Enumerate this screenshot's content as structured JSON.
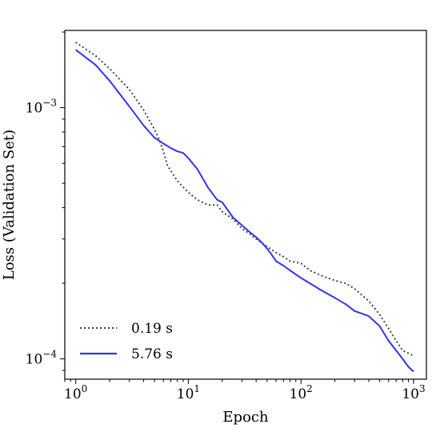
{
  "chart_data": {
    "type": "line",
    "xscale": "log",
    "yscale": "log",
    "xlabel": "Epoch",
    "ylabel": "Loss (Validation Set)",
    "xlim": [
      0.8,
      1300
    ],
    "ylim": [
      8.3e-05,
      0.00203
    ],
    "x_ticks": [
      {
        "value": 1,
        "base": "10",
        "exp": "0"
      },
      {
        "value": 10,
        "base": "10",
        "exp": "1"
      },
      {
        "value": 100,
        "base": "10",
        "exp": "2"
      },
      {
        "value": 1000,
        "base": "10",
        "exp": "3"
      }
    ],
    "y_ticks": [
      {
        "value": 0.001,
        "base": "10",
        "exp": "−3"
      },
      {
        "value": 0.0001,
        "base": "10",
        "exp": "−4"
      }
    ],
    "grid": false,
    "legend_position": "lower-left",
    "series": [
      {
        "name": "0.19 s",
        "color": "#444444",
        "style": "dotted",
        "x": [
          1,
          1.5,
          2,
          3,
          4,
          5,
          5.5,
          6,
          6.5,
          7,
          8,
          10,
          12,
          15,
          18,
          20,
          25,
          30,
          35,
          40,
          50,
          60,
          70,
          80,
          100,
          120,
          150,
          200,
          250,
          300,
          400,
          500,
          600,
          700,
          800,
          1000
        ],
        "y": [
          0.00182,
          0.00161,
          0.00143,
          0.00118,
          0.00098,
          0.00082,
          0.00075,
          0.00067,
          0.00059,
          0.00056,
          0.00051,
          0.00046,
          0.00043,
          0.00041,
          0.00041,
          0.000385,
          0.00036,
          0.00033,
          0.000315,
          0.0003,
          0.00028,
          0.000265,
          0.000255,
          0.000245,
          0.00024,
          0.000225,
          0.000215,
          0.000205,
          0.0002,
          0.00019,
          0.00017,
          0.00015,
          0.000132,
          0.000118,
          0.000108,
          0.000103
        ]
      },
      {
        "name": "5.76 s",
        "color": "#3333ee",
        "style": "solid",
        "x": [
          1,
          1.5,
          2,
          3,
          4,
          5,
          6,
          7,
          8,
          9,
          10,
          12,
          15,
          18,
          20,
          25,
          30,
          35,
          40,
          45,
          50,
          55,
          60,
          70,
          80,
          100,
          120,
          150,
          200,
          250,
          300,
          400,
          500,
          600,
          700,
          800,
          900,
          1000
        ],
        "y": [
          0.0017,
          0.00148,
          0.00128,
          0.00101,
          0.00085,
          0.00076,
          0.00072,
          0.00069,
          0.00067,
          0.00066,
          0.00063,
          0.00057,
          0.00048,
          0.00043,
          0.00042,
          0.000365,
          0.00034,
          0.00032,
          0.000305,
          0.00029,
          0.000275,
          0.00026,
          0.000245,
          0.000235,
          0.000225,
          0.00021,
          0.0002,
          0.000188,
          0.000175,
          0.000165,
          0.000155,
          0.000148,
          0.000135,
          0.000118,
          0.000108,
          0.0001,
          9.3e-05,
          8.9e-05
        ]
      }
    ],
    "legend": [
      {
        "label": "0.19 s",
        "color": "#444444",
        "style": "dotted"
      },
      {
        "label": "5.76 s",
        "color": "#3333ee",
        "style": "solid"
      }
    ]
  }
}
